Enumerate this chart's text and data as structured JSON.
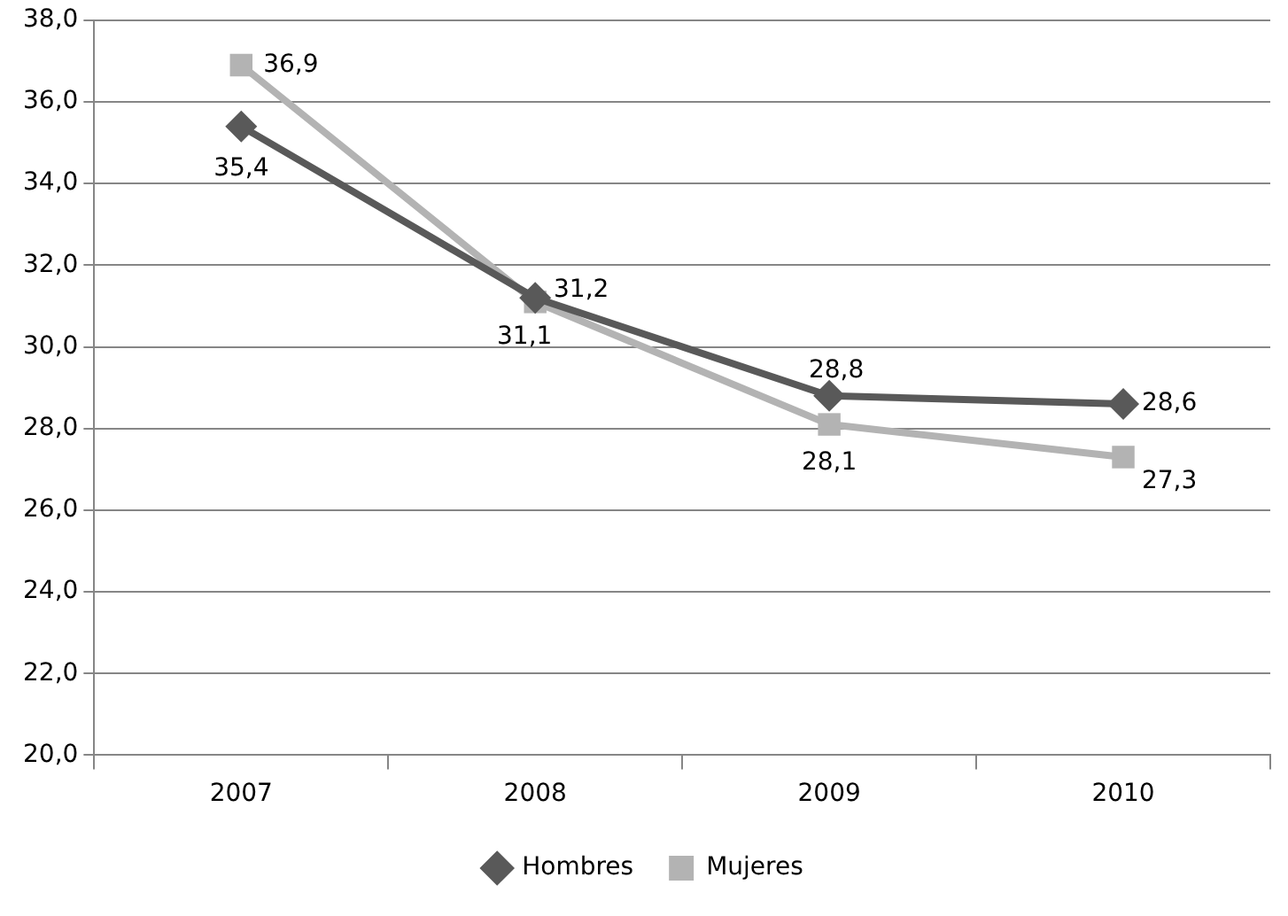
{
  "chart_data": {
    "type": "line",
    "categories": [
      "2007",
      "2008",
      "2009",
      "2010"
    ],
    "series": [
      {
        "name": "Hombres",
        "color": "#595959",
        "marker": "diamond",
        "values": [
          35.4,
          31.2,
          28.8,
          28.6
        ],
        "value_labels": [
          "35,4",
          "31,2",
          "28,8",
          "28,6"
        ]
      },
      {
        "name": "Mujeres",
        "color": "#b3b3b3",
        "marker": "square",
        "values": [
          36.9,
          31.1,
          28.1,
          27.3
        ],
        "value_labels": [
          "36,9",
          "31,1",
          "28,1",
          "27,3"
        ]
      }
    ],
    "ylim": [
      20,
      38
    ],
    "yticks": [
      {
        "value": 20,
        "label": "20,0"
      },
      {
        "value": 22,
        "label": "22,0"
      },
      {
        "value": 24,
        "label": "24,0"
      },
      {
        "value": 26,
        "label": "26,0"
      },
      {
        "value": 28,
        "label": "28,0"
      },
      {
        "value": 30,
        "label": "30,0"
      },
      {
        "value": 32,
        "label": "32,0"
      },
      {
        "value": 34,
        "label": "34,0"
      },
      {
        "value": 36,
        "label": "36,0"
      },
      {
        "value": 38,
        "label": "38,0"
      }
    ],
    "grid": "y",
    "legend": "bottom",
    "line_style": "solid"
  }
}
